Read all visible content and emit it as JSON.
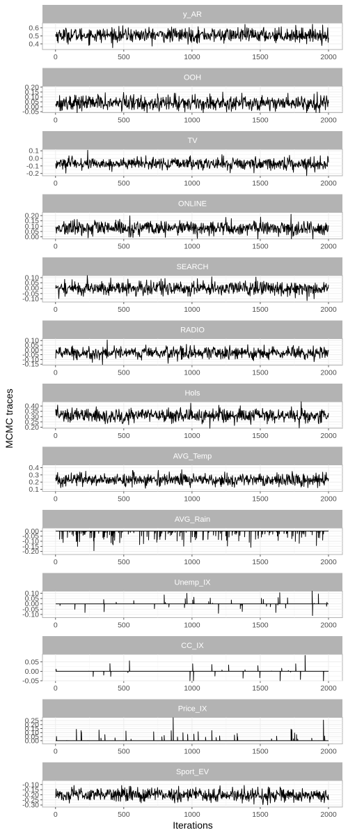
{
  "chart_data": {
    "type": "line",
    "xlabel": "Iterations",
    "ylabel": "MCMC traces",
    "x_ticks": [
      0,
      500,
      1000,
      1500,
      2000
    ],
    "x_range": [
      1,
      2000
    ],
    "grid": true,
    "panels": [
      {
        "name": "y_AR",
        "ylim": [
          0.33,
          0.66
        ],
        "yticks": [
          0.4,
          0.5,
          0.6
        ],
        "ytick_labels": [
          "0.4",
          "0.5",
          "0.6"
        ],
        "mean": 0.51,
        "sd": 0.045,
        "kind": "noise"
      },
      {
        "name": "OOH",
        "ylim": [
          -0.06,
          0.21
        ],
        "yticks": [
          -0.05,
          0.0,
          0.05,
          0.1,
          0.15,
          0.2
        ],
        "ytick_labels": [
          "-0.05",
          "0.00",
          "0.05",
          "0.10",
          "0.15",
          "0.20"
        ],
        "mean": 0.04,
        "sd": 0.04,
        "kind": "noise"
      },
      {
        "name": "TV",
        "ylim": [
          -0.23,
          0.12
        ],
        "yticks": [
          -0.2,
          -0.1,
          0.0,
          0.1
        ],
        "ytick_labels": [
          "-0.2",
          "-0.1",
          "0.0",
          "0.1"
        ],
        "mean": -0.07,
        "sd": 0.04,
        "kind": "noise"
      },
      {
        "name": "ONLINE",
        "ylim": [
          -0.02,
          0.23
        ],
        "yticks": [
          0.0,
          0.05,
          0.1,
          0.15,
          0.2
        ],
        "ytick_labels": [
          "0.00",
          "0.05",
          "0.10",
          "0.15",
          "0.20"
        ],
        "mean": 0.08,
        "sd": 0.035,
        "kind": "noise"
      },
      {
        "name": "SEARCH",
        "ylim": [
          -0.13,
          0.12
        ],
        "yticks": [
          -0.1,
          -0.05,
          0.0,
          0.05,
          0.1
        ],
        "ytick_labels": [
          "-0.10",
          "-0.05",
          "0.00",
          "0.05",
          "0.10"
        ],
        "mean": 0.0,
        "sd": 0.035,
        "kind": "noise"
      },
      {
        "name": "RADIO",
        "ylim": [
          -0.16,
          0.12
        ],
        "yticks": [
          -0.15,
          -0.1,
          -0.05,
          0.0,
          0.05,
          0.1
        ],
        "ytick_labels": [
          "-0.15",
          "-0.10",
          "-0.05",
          "0.00",
          "0.05",
          "0.10"
        ],
        "mean": -0.03,
        "sd": 0.035,
        "kind": "noise"
      },
      {
        "name": "Hols",
        "ylim": [
          0.19,
          0.44
        ],
        "yticks": [
          0.2,
          0.25,
          0.3,
          0.35,
          0.4
        ],
        "ytick_labels": [
          "0.20",
          "0.25",
          "0.30",
          "0.35",
          "0.40"
        ],
        "mean": 0.31,
        "sd": 0.035,
        "kind": "noise"
      },
      {
        "name": "AVG_Temp",
        "ylim": [
          0.07,
          0.44
        ],
        "yticks": [
          0.1,
          0.2,
          0.3,
          0.4
        ],
        "ytick_labels": [
          "0.1",
          "0.2",
          "0.3",
          "0.4"
        ],
        "mean": 0.23,
        "sd": 0.045,
        "kind": "noise"
      },
      {
        "name": "AVG_Rain",
        "ylim": [
          -0.23,
          0.03
        ],
        "yticks": [
          -0.2,
          -0.15,
          -0.1,
          -0.05,
          0.0
        ],
        "ytick_labels": [
          "-0.20",
          "-0.15",
          "-0.10",
          "-0.05",
          "0.00"
        ],
        "mean": 0.0,
        "sd": 0.06,
        "kind": "spike_down"
      },
      {
        "name": "Unemp_IX",
        "ylim": [
          -0.13,
          0.12
        ],
        "yticks": [
          -0.1,
          -0.05,
          0.0,
          0.05,
          0.1
        ],
        "ytick_labels": [
          "-0.10",
          "-0.05",
          "0.00",
          "0.05",
          "0.10"
        ],
        "mean": 0.0,
        "sd": 0.05,
        "kind": "spike_both"
      },
      {
        "name": "CC_IX",
        "ylim": [
          -0.05,
          0.09
        ],
        "yticks": [
          -0.05,
          0.0,
          0.05
        ],
        "ytick_labels": [
          "-0.05",
          "0.00",
          "0.05"
        ],
        "mean": 0.0,
        "sd": 0.035,
        "kind": "spike_both"
      },
      {
        "name": "Price_IX",
        "ylim": [
          -0.04,
          0.29
        ],
        "yticks": [
          0.0,
          0.05,
          0.1,
          0.15,
          0.2,
          0.25
        ],
        "ytick_labels": [
          "0.00",
          "0.05",
          "0.10",
          "0.15",
          "0.20",
          "0.25"
        ],
        "mean": 0.0,
        "sd": 0.08,
        "kind": "spike_up"
      },
      {
        "name": "Sport_EV",
        "ylim": [
          -0.32,
          -0.06
        ],
        "yticks": [
          -0.3,
          -0.25,
          -0.2,
          -0.15,
          -0.1
        ],
        "ytick_labels": [
          "-0.30",
          "-0.25",
          "-0.20",
          "-0.15",
          "-0.10"
        ],
        "mean": -0.2,
        "sd": 0.035,
        "kind": "noise"
      }
    ]
  }
}
